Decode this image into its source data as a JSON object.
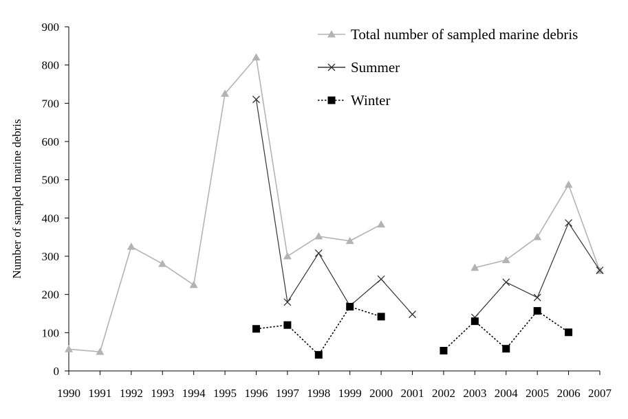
{
  "chart_data": {
    "type": "line",
    "title": "",
    "xlabel": "",
    "ylabel": "Number of sampled marine debris",
    "ylim": [
      0,
      900
    ],
    "yticks": [
      0,
      100,
      200,
      300,
      400,
      500,
      600,
      700,
      800,
      900
    ],
    "grid": false,
    "legend_position": "top-right",
    "categories": [
      "1990",
      "1991",
      "1992",
      "1993",
      "1994",
      "1995",
      "1996",
      "1997",
      "1998",
      "1999",
      "2000",
      "2001",
      "2002",
      "2003",
      "2004",
      "2005",
      "2006",
      "2007"
    ],
    "series": [
      {
        "name": "Total number of sampled marine debris",
        "marker": "triangle",
        "line_style": "solid",
        "color": "#b3b3b3",
        "values": [
          57,
          50,
          325,
          280,
          225,
          725,
          820,
          300,
          352,
          340,
          383,
          null,
          null,
          270,
          290,
          350,
          487,
          262
        ]
      },
      {
        "name": "Summer",
        "marker": "x",
        "line_style": "solid",
        "color": "#333333",
        "values": [
          null,
          null,
          null,
          null,
          null,
          null,
          710,
          180,
          308,
          170,
          240,
          148,
          null,
          140,
          232,
          192,
          387,
          263
        ]
      },
      {
        "name": "Winter",
        "marker": "square",
        "line_style": "dotted",
        "color": "#000000",
        "values": [
          null,
          null,
          null,
          null,
          null,
          null,
          110,
          120,
          42,
          168,
          142,
          null,
          53,
          130,
          58,
          157,
          101,
          null
        ]
      }
    ]
  }
}
